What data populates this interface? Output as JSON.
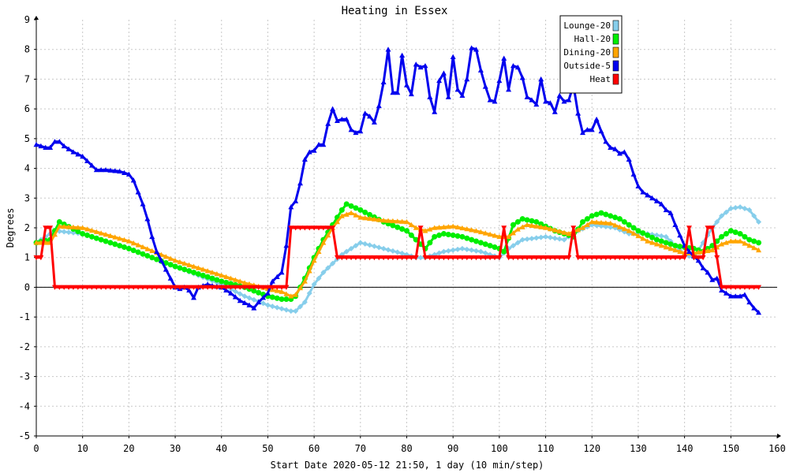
{
  "chart_data": {
    "type": "line",
    "title": "Heating in Essex",
    "xlabel": "Start Date 2020-05-12 21:50, 1 day (10 min/step)",
    "ylabel": "Degrees",
    "xlim": [
      0,
      160
    ],
    "ylim": [
      -5,
      9
    ],
    "xticks": [
      0,
      10,
      20,
      30,
      40,
      50,
      60,
      70,
      80,
      90,
      100,
      110,
      120,
      130,
      140,
      150,
      160
    ],
    "yticks": [
      -5,
      -4,
      -3,
      -2,
      -1,
      0,
      1,
      2,
      3,
      4,
      5,
      6,
      7,
      8,
      9
    ],
    "grid": true,
    "legend_position": "top-right",
    "series": [
      {
        "name": "Lounge-20",
        "color": "#87ceeb",
        "marker": "diamond",
        "points": [
          [
            0,
            1.5
          ],
          [
            4,
            1.9
          ],
          [
            10,
            1.8
          ],
          [
            20,
            1.3
          ],
          [
            30,
            0.7
          ],
          [
            40,
            0.1
          ],
          [
            45,
            -0.3
          ],
          [
            50,
            -0.6
          ],
          [
            55,
            -0.8
          ],
          [
            56,
            -0.8
          ],
          [
            58,
            -0.5
          ],
          [
            60,
            0.1
          ],
          [
            62,
            0.5
          ],
          [
            64,
            0.8
          ],
          [
            66,
            1.1
          ],
          [
            70,
            1.5
          ],
          [
            75,
            1.3
          ],
          [
            80,
            1.1
          ],
          [
            82,
            1.0
          ],
          [
            84,
            1.0
          ],
          [
            88,
            1.2
          ],
          [
            92,
            1.3
          ],
          [
            96,
            1.2
          ],
          [
            100,
            1.0
          ],
          [
            102,
            1.3
          ],
          [
            105,
            1.6
          ],
          [
            110,
            1.7
          ],
          [
            114,
            1.6
          ],
          [
            117,
            1.9
          ],
          [
            120,
            2.1
          ],
          [
            125,
            2.0
          ],
          [
            128,
            1.8
          ],
          [
            132,
            1.8
          ],
          [
            136,
            1.7
          ],
          [
            140,
            1.1
          ],
          [
            142,
            1.0
          ],
          [
            144,
            1.5
          ],
          [
            146,
            2.0
          ],
          [
            148,
            2.4
          ],
          [
            150,
            2.65
          ],
          [
            152,
            2.7
          ],
          [
            154,
            2.6
          ],
          [
            156,
            2.2
          ]
        ]
      },
      {
        "name": "Hall-20",
        "color": "#00ee00",
        "marker": "circle",
        "points": [
          [
            0,
            1.5
          ],
          [
            3,
            1.6
          ],
          [
            5,
            2.2
          ],
          [
            10,
            1.8
          ],
          [
            20,
            1.3
          ],
          [
            30,
            0.7
          ],
          [
            40,
            0.2
          ],
          [
            45,
            0.0
          ],
          [
            50,
            -0.3
          ],
          [
            53,
            -0.4
          ],
          [
            55,
            -0.4
          ],
          [
            56,
            -0.3
          ],
          [
            58,
            0.3
          ],
          [
            60,
            1.0
          ],
          [
            62,
            1.6
          ],
          [
            64,
            2.1
          ],
          [
            66,
            2.6
          ],
          [
            67,
            2.8
          ],
          [
            70,
            2.6
          ],
          [
            75,
            2.2
          ],
          [
            80,
            1.9
          ],
          [
            82,
            1.6
          ],
          [
            84,
            1.3
          ],
          [
            86,
            1.7
          ],
          [
            88,
            1.8
          ],
          [
            92,
            1.7
          ],
          [
            96,
            1.5
          ],
          [
            100,
            1.3
          ],
          [
            101,
            1.2
          ],
          [
            103,
            2.1
          ],
          [
            105,
            2.3
          ],
          [
            108,
            2.2
          ],
          [
            112,
            1.9
          ],
          [
            116,
            1.7
          ],
          [
            118,
            2.2
          ],
          [
            120,
            2.4
          ],
          [
            122,
            2.5
          ],
          [
            126,
            2.3
          ],
          [
            130,
            1.9
          ],
          [
            134,
            1.6
          ],
          [
            138,
            1.4
          ],
          [
            142,
            1.3
          ],
          [
            144,
            1.2
          ],
          [
            146,
            1.4
          ],
          [
            148,
            1.7
          ],
          [
            150,
            1.9
          ],
          [
            152,
            1.8
          ],
          [
            154,
            1.6
          ],
          [
            156,
            1.5
          ]
        ]
      },
      {
        "name": "Dining-20",
        "color": "#ffa500",
        "marker": "triangle",
        "points": [
          [
            0,
            1.5
          ],
          [
            3,
            1.5
          ],
          [
            5,
            2.05
          ],
          [
            10,
            2.0
          ],
          [
            20,
            1.55
          ],
          [
            30,
            0.9
          ],
          [
            40,
            0.4
          ],
          [
            45,
            0.15
          ],
          [
            50,
            -0.05
          ],
          [
            53,
            -0.15
          ],
          [
            55,
            -0.3
          ],
          [
            56,
            -0.25
          ],
          [
            58,
            0.2
          ],
          [
            60,
            0.9
          ],
          [
            62,
            1.5
          ],
          [
            64,
            2.0
          ],
          [
            66,
            2.4
          ],
          [
            68,
            2.5
          ],
          [
            70,
            2.35
          ],
          [
            75,
            2.25
          ],
          [
            80,
            2.2
          ],
          [
            82,
            2.0
          ],
          [
            84,
            1.9
          ],
          [
            86,
            2.0
          ],
          [
            90,
            2.05
          ],
          [
            95,
            1.9
          ],
          [
            100,
            1.7
          ],
          [
            102,
            1.7
          ],
          [
            104,
            1.95
          ],
          [
            106,
            2.1
          ],
          [
            110,
            2.0
          ],
          [
            115,
            1.8
          ],
          [
            118,
            2.0
          ],
          [
            120,
            2.2
          ],
          [
            124,
            2.15
          ],
          [
            128,
            1.9
          ],
          [
            132,
            1.55
          ],
          [
            136,
            1.35
          ],
          [
            140,
            1.15
          ],
          [
            142,
            1.15
          ],
          [
            144,
            1.2
          ],
          [
            146,
            1.25
          ],
          [
            148,
            1.45
          ],
          [
            150,
            1.55
          ],
          [
            152,
            1.55
          ],
          [
            154,
            1.4
          ],
          [
            156,
            1.25
          ]
        ]
      },
      {
        "name": "Outside-5",
        "color": "#0000ee",
        "marker": "triangle",
        "points": [
          [
            0,
            4.8
          ],
          [
            1,
            4.75
          ],
          [
            2,
            4.7
          ],
          [
            3,
            4.7
          ],
          [
            4,
            4.9
          ],
          [
            5,
            4.9
          ],
          [
            6,
            4.75
          ],
          [
            8,
            4.55
          ],
          [
            10,
            4.4
          ],
          [
            12,
            4.1
          ],
          [
            13,
            3.95
          ],
          [
            15,
            3.95
          ],
          [
            18,
            3.9
          ],
          [
            20,
            3.8
          ],
          [
            21,
            3.6
          ],
          [
            22,
            3.2
          ],
          [
            23,
            2.8
          ],
          [
            24,
            2.3
          ],
          [
            25,
            1.7
          ],
          [
            26,
            1.2
          ],
          [
            27,
            0.9
          ],
          [
            28,
            0.6
          ],
          [
            29,
            0.3
          ],
          [
            30,
            0.0
          ],
          [
            31,
            -0.05
          ],
          [
            32,
            0.0
          ],
          [
            33,
            -0.1
          ],
          [
            34,
            -0.35
          ],
          [
            35,
            0.0
          ],
          [
            37,
            0.1
          ],
          [
            38,
            0.05
          ],
          [
            40,
            0.0
          ],
          [
            42,
            -0.2
          ],
          [
            44,
            -0.45
          ],
          [
            46,
            -0.6
          ],
          [
            47,
            -0.7
          ],
          [
            48,
            -0.5
          ],
          [
            50,
            -0.2
          ],
          [
            51,
            0.2
          ],
          [
            52,
            0.35
          ],
          [
            53,
            0.5
          ],
          [
            54,
            1.4
          ],
          [
            55,
            2.7
          ],
          [
            56,
            2.9
          ],
          [
            57,
            3.5
          ],
          [
            58,
            4.3
          ],
          [
            59,
            4.55
          ],
          [
            60,
            4.6
          ],
          [
            61,
            4.8
          ],
          [
            62,
            4.8
          ],
          [
            63,
            5.5
          ],
          [
            64,
            6.0
          ],
          [
            65,
            5.6
          ],
          [
            66,
            5.65
          ],
          [
            67,
            5.65
          ],
          [
            68,
            5.3
          ],
          [
            69,
            5.2
          ],
          [
            70,
            5.25
          ],
          [
            71,
            5.85
          ],
          [
            72,
            5.75
          ],
          [
            73,
            5.55
          ],
          [
            74,
            6.1
          ],
          [
            75,
            6.9
          ],
          [
            76,
            8.0
          ],
          [
            77,
            6.55
          ],
          [
            78,
            6.55
          ],
          [
            79,
            7.8
          ],
          [
            80,
            6.8
          ],
          [
            81,
            6.5
          ],
          [
            82,
            7.5
          ],
          [
            83,
            7.4
          ],
          [
            84,
            7.45
          ],
          [
            85,
            6.4
          ],
          [
            86,
            5.9
          ],
          [
            87,
            6.95
          ],
          [
            88,
            7.2
          ],
          [
            89,
            6.4
          ],
          [
            90,
            7.75
          ],
          [
            91,
            6.65
          ],
          [
            92,
            6.45
          ],
          [
            93,
            7.0
          ],
          [
            94,
            8.05
          ],
          [
            95,
            8.0
          ],
          [
            96,
            7.3
          ],
          [
            97,
            6.75
          ],
          [
            98,
            6.3
          ],
          [
            99,
            6.25
          ],
          [
            100,
            6.95
          ],
          [
            101,
            7.7
          ],
          [
            102,
            6.65
          ],
          [
            103,
            7.45
          ],
          [
            104,
            7.4
          ],
          [
            105,
            7.05
          ],
          [
            106,
            6.4
          ],
          [
            107,
            6.3
          ],
          [
            108,
            6.15
          ],
          [
            109,
            7.0
          ],
          [
            110,
            6.25
          ],
          [
            111,
            6.2
          ],
          [
            112,
            5.9
          ],
          [
            113,
            6.45
          ],
          [
            114,
            6.25
          ],
          [
            115,
            6.3
          ],
          [
            116,
            6.8
          ],
          [
            117,
            5.85
          ],
          [
            118,
            5.2
          ],
          [
            119,
            5.3
          ],
          [
            120,
            5.3
          ],
          [
            121,
            5.65
          ],
          [
            122,
            5.25
          ],
          [
            123,
            4.9
          ],
          [
            124,
            4.7
          ],
          [
            125,
            4.65
          ],
          [
            126,
            4.5
          ],
          [
            127,
            4.55
          ],
          [
            128,
            4.3
          ],
          [
            129,
            3.8
          ],
          [
            130,
            3.4
          ],
          [
            131,
            3.2
          ],
          [
            132,
            3.1
          ],
          [
            133,
            3.0
          ],
          [
            134,
            2.9
          ],
          [
            135,
            2.8
          ],
          [
            136,
            2.6
          ],
          [
            137,
            2.5
          ],
          [
            138,
            2.1
          ],
          [
            139,
            1.75
          ],
          [
            140,
            1.4
          ],
          [
            141,
            1.2
          ],
          [
            142,
            1.05
          ],
          [
            143,
            0.9
          ],
          [
            144,
            0.65
          ],
          [
            145,
            0.5
          ],
          [
            146,
            0.25
          ],
          [
            147,
            0.3
          ],
          [
            148,
            -0.1
          ],
          [
            149,
            -0.2
          ],
          [
            150,
            -0.3
          ],
          [
            151,
            -0.3
          ],
          [
            152,
            -0.3
          ],
          [
            153,
            -0.25
          ],
          [
            154,
            -0.5
          ],
          [
            155,
            -0.7
          ],
          [
            156,
            -0.85
          ]
        ]
      },
      {
        "name": "Heat",
        "color": "#ff0000",
        "marker": "triangle-down",
        "points": [
          [
            0,
            1
          ],
          [
            1,
            1
          ],
          [
            2,
            2
          ],
          [
            3,
            2
          ],
          [
            4,
            0
          ],
          [
            54,
            0
          ],
          [
            55,
            2
          ],
          [
            64,
            2
          ],
          [
            65,
            1
          ],
          [
            82,
            1
          ],
          [
            83,
            2
          ],
          [
            84,
            1
          ],
          [
            100,
            1
          ],
          [
            101,
            2
          ],
          [
            102,
            1
          ],
          [
            115,
            1
          ],
          [
            116,
            2
          ],
          [
            117,
            1
          ],
          [
            140,
            1
          ],
          [
            141,
            2
          ],
          [
            142,
            1
          ],
          [
            144,
            1
          ],
          [
            145,
            2
          ],
          [
            146,
            2
          ],
          [
            147,
            1
          ],
          [
            148,
            0
          ],
          [
            156,
            0
          ]
        ]
      }
    ]
  }
}
